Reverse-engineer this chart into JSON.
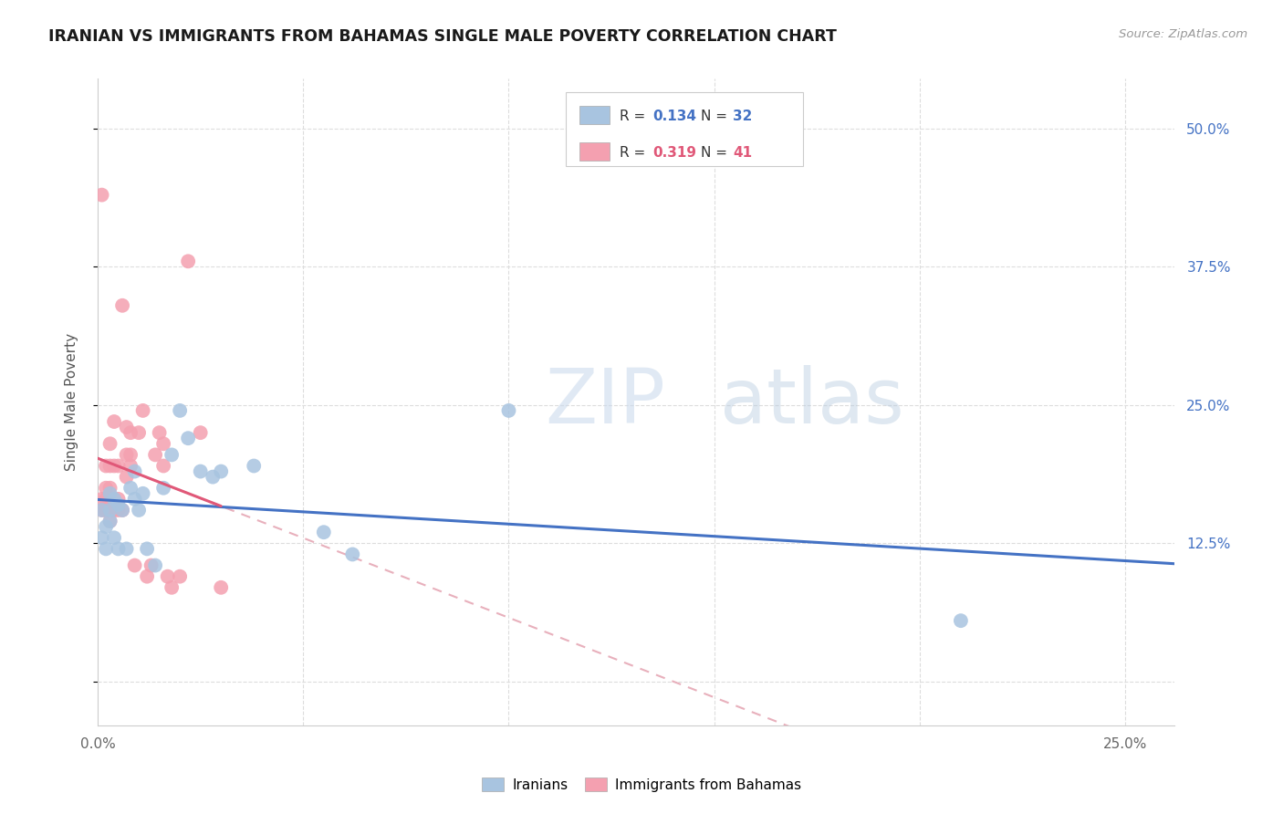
{
  "title": "IRANIAN VS IMMIGRANTS FROM BAHAMAS SINGLE MALE POVERTY CORRELATION CHART",
  "source": "Source: ZipAtlas.com",
  "ylabel_label": "Single Male Poverty",
  "xlim": [
    0.0,
    0.262
  ],
  "ylim": [
    -0.04,
    0.545
  ],
  "iranians_R": 0.134,
  "iranians_N": 32,
  "bahamas_R": 0.319,
  "bahamas_N": 41,
  "iranians_color": "#a8c4e0",
  "bahamas_color": "#f4a0b0",
  "iranians_line_color": "#4472c4",
  "bahamas_line_color": "#e05878",
  "bahamas_dashed_color": "#e8b0bc",
  "watermark_color": "#ccd8e8",
  "iranians_x": [
    0.001,
    0.001,
    0.002,
    0.002,
    0.003,
    0.003,
    0.003,
    0.004,
    0.004,
    0.005,
    0.005,
    0.006,
    0.007,
    0.008,
    0.009,
    0.009,
    0.01,
    0.011,
    0.012,
    0.014,
    0.016,
    0.018,
    0.02,
    0.022,
    0.025,
    0.028,
    0.03,
    0.038,
    0.055,
    0.062,
    0.1,
    0.21
  ],
  "iranians_y": [
    0.13,
    0.155,
    0.12,
    0.14,
    0.145,
    0.155,
    0.17,
    0.13,
    0.165,
    0.12,
    0.16,
    0.155,
    0.12,
    0.175,
    0.165,
    0.19,
    0.155,
    0.17,
    0.12,
    0.105,
    0.175,
    0.205,
    0.245,
    0.22,
    0.19,
    0.185,
    0.19,
    0.195,
    0.135,
    0.115,
    0.245,
    0.055
  ],
  "bahamas_x": [
    0.001,
    0.001,
    0.001,
    0.002,
    0.002,
    0.002,
    0.002,
    0.003,
    0.003,
    0.003,
    0.003,
    0.003,
    0.004,
    0.004,
    0.004,
    0.005,
    0.005,
    0.005,
    0.006,
    0.006,
    0.007,
    0.007,
    0.007,
    0.008,
    0.008,
    0.008,
    0.009,
    0.01,
    0.011,
    0.012,
    0.013,
    0.014,
    0.015,
    0.016,
    0.016,
    0.017,
    0.018,
    0.02,
    0.022,
    0.025,
    0.03
  ],
  "bahamas_y": [
    0.155,
    0.165,
    0.44,
    0.155,
    0.165,
    0.175,
    0.195,
    0.145,
    0.16,
    0.175,
    0.195,
    0.215,
    0.155,
    0.195,
    0.235,
    0.155,
    0.165,
    0.195,
    0.155,
    0.34,
    0.185,
    0.205,
    0.23,
    0.195,
    0.205,
    0.225,
    0.105,
    0.225,
    0.245,
    0.095,
    0.105,
    0.205,
    0.225,
    0.195,
    0.215,
    0.095,
    0.085,
    0.095,
    0.38,
    0.225,
    0.085
  ],
  "background_color": "#ffffff",
  "grid_color": "#dddddd",
  "x_ticks": [
    0.0,
    0.05,
    0.1,
    0.15,
    0.2,
    0.25
  ],
  "x_tick_labels": [
    "0.0%",
    "",
    "",
    "",
    "",
    "25.0%"
  ],
  "y_ticks": [
    0.0,
    0.125,
    0.25,
    0.375,
    0.5
  ],
  "y_tick_labels": [
    "",
    "12.5%",
    "25.0%",
    "37.5%",
    "50.0%"
  ]
}
